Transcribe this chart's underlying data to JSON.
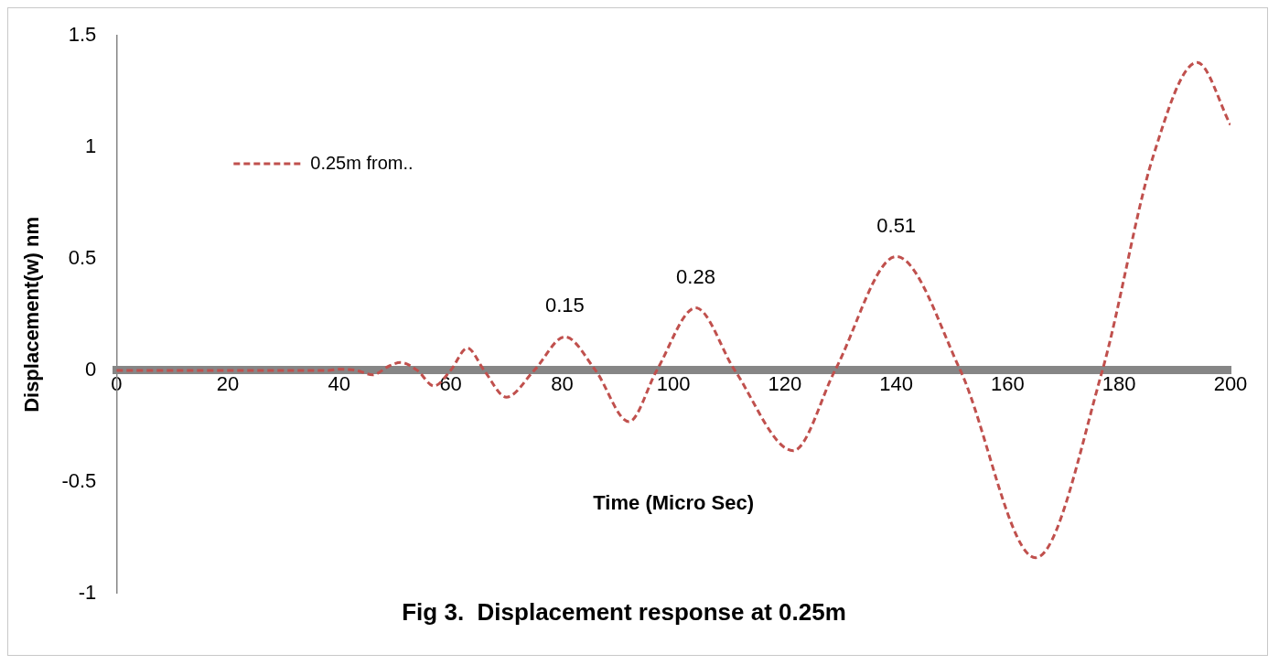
{
  "chart_data": {
    "type": "line",
    "title": "Fig 3.  Displacement response at 0.25m",
    "xlabel": "Time (Micro Sec)",
    "ylabel": "Displacement(w) nm",
    "x": [
      0,
      38,
      40,
      43,
      46,
      49,
      51,
      54,
      57,
      60,
      63,
      66,
      70,
      75,
      80.5,
      86,
      92,
      97,
      104,
      111,
      121.5,
      129,
      140,
      151.5,
      165,
      177,
      186,
      194,
      200
    ],
    "series": [
      {
        "name": "0.25m from..",
        "color": "#c0504d",
        "values": [
          0,
          0,
          0.005,
          0,
          -0.02,
          0.02,
          0.035,
          0,
          -0.07,
          0,
          0.1,
          0,
          -0.12,
          0,
          0.15,
          0,
          -0.23,
          0,
          0.28,
          0,
          -0.36,
          0,
          0.51,
          0,
          -0.84,
          0,
          0.95,
          1.38,
          1.1
        ]
      }
    ],
    "annotations": [
      {
        "text": "0.15",
        "x": 80.5,
        "y": 0.15
      },
      {
        "text": "0.28",
        "x": 104,
        "y": 0.28
      },
      {
        "text": "0.51",
        "x": 140,
        "y": 0.51
      }
    ],
    "xlim": [
      0,
      200
    ],
    "xticks": [
      0,
      20,
      40,
      60,
      80,
      100,
      120,
      140,
      160,
      180,
      200
    ],
    "ylim": [
      -1,
      1.5
    ],
    "yticks": [
      -1,
      -0.5,
      0,
      0.5,
      1,
      1.5
    ],
    "grid": false,
    "legend": "top left",
    "marker": "none",
    "line_style": "dashed"
  }
}
